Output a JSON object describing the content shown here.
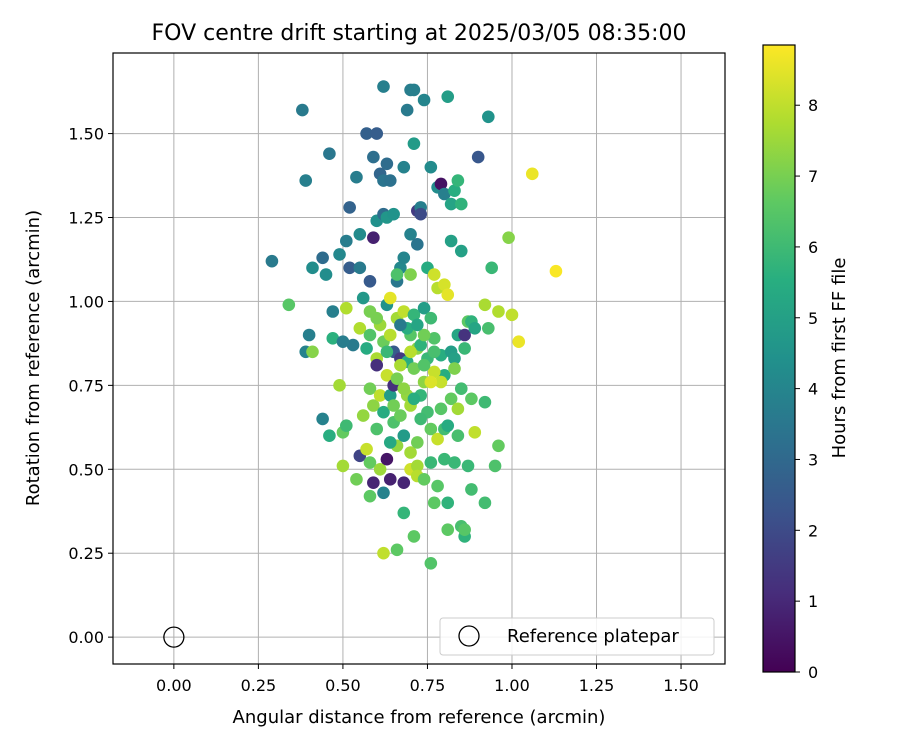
{
  "chart_data": {
    "type": "scatter",
    "title": "FOV centre drift starting at 2025/03/05 08:35:00",
    "xlabel": "Angular distance from reference (arcmin)",
    "ylabel": "Rotation from reference (arcmin)",
    "xlim": [
      -0.18,
      1.63
    ],
    "ylim": [
      -0.08,
      1.74
    ],
    "x_ticks": [
      "0.00",
      "0.25",
      "0.50",
      "0.75",
      "1.00",
      "1.25",
      "1.50"
    ],
    "y_ticks": [
      "0.00",
      "0.25",
      "0.50",
      "0.75",
      "1.00",
      "1.25",
      "1.50"
    ],
    "grid": true,
    "legend": {
      "position": "lower right",
      "entries": [
        "Reference platepar"
      ]
    },
    "colorbar": {
      "label": "Hours from first FF file",
      "range": [
        0,
        8.85
      ],
      "ticks": [
        "0",
        "1",
        "2",
        "3",
        "4",
        "5",
        "6",
        "7",
        "8"
      ],
      "colormap": "viridis"
    },
    "reference_point": {
      "x": 0.0,
      "y": 0.0
    },
    "series": [
      {
        "points": [
          [
            0.29,
            1.12,
            3.6
          ],
          [
            0.38,
            1.57,
            3.6
          ],
          [
            0.39,
            1.36,
            3.8
          ],
          [
            0.4,
            0.9,
            3.8
          ],
          [
            0.39,
            0.85,
            3.9
          ],
          [
            0.41,
            1.1,
            4.3
          ],
          [
            0.44,
            1.13,
            3.1
          ],
          [
            0.45,
            1.08,
            4.3
          ],
          [
            0.46,
            1.44,
            3.5
          ],
          [
            0.47,
            0.97,
            3.8
          ],
          [
            0.49,
            1.14,
            4.1
          ],
          [
            0.51,
            1.18,
            3.7
          ],
          [
            0.52,
            1.28,
            2.8
          ],
          [
            0.52,
            1.1,
            2.6
          ],
          [
            0.53,
            0.87,
            3.6
          ],
          [
            0.54,
            1.37,
            3.7
          ],
          [
            0.55,
            1.2,
            4.2
          ],
          [
            0.55,
            1.1,
            3.6
          ],
          [
            0.56,
            1.01,
            4.7
          ],
          [
            0.57,
            1.5,
            2.7
          ],
          [
            0.58,
            1.06,
            2.5
          ],
          [
            0.59,
            1.43,
            3.2
          ],
          [
            0.59,
            1.19,
            0.8
          ],
          [
            0.6,
            1.5,
            2.6
          ],
          [
            0.6,
            1.24,
            4.4
          ],
          [
            0.61,
            1.38,
            2.9
          ],
          [
            0.62,
            1.64,
            3.8
          ],
          [
            0.62,
            1.36,
            3.4
          ],
          [
            0.62,
            1.26,
            3.1
          ],
          [
            0.63,
            1.41,
            3.1
          ],
          [
            0.63,
            1.25,
            4.6
          ],
          [
            0.64,
            1.36,
            3.3
          ],
          [
            0.65,
            1.26,
            4.5
          ],
          [
            0.66,
            1.06,
            3.5
          ],
          [
            0.67,
            1.1,
            4.1
          ],
          [
            0.68,
            1.4,
            3.9
          ],
          [
            0.68,
            1.13,
            4.0
          ],
          [
            0.69,
            1.57,
            3.6
          ],
          [
            0.7,
            1.63,
            3.7
          ],
          [
            0.7,
            1.2,
            3.9
          ],
          [
            0.71,
            1.63,
            3.8
          ],
          [
            0.71,
            1.47,
            4.8
          ],
          [
            0.72,
            1.17,
            3.4
          ],
          [
            0.72,
            1.27,
            1.5
          ],
          [
            0.73,
            1.28,
            3.8
          ],
          [
            0.73,
            1.26,
            2.0
          ],
          [
            0.74,
            1.6,
            4.0
          ],
          [
            0.75,
            1.1,
            5.4
          ],
          [
            0.76,
            1.4,
            4.2
          ],
          [
            0.78,
            1.34,
            4.3
          ],
          [
            0.79,
            1.35,
            0.4
          ],
          [
            0.8,
            1.32,
            3.8
          ],
          [
            0.81,
            1.61,
            4.9
          ],
          [
            0.82,
            1.29,
            5.1
          ],
          [
            0.82,
            1.18,
            5.0
          ],
          [
            0.83,
            1.33,
            5.5
          ],
          [
            0.84,
            1.36,
            5.8
          ],
          [
            0.85,
            1.29,
            5.7
          ],
          [
            0.85,
            1.15,
            5.0
          ],
          [
            0.9,
            1.43,
            2.4
          ],
          [
            0.93,
            1.55,
            4.5
          ],
          [
            0.94,
            1.1,
            5.9
          ],
          [
            0.99,
            1.19,
            7.2
          ],
          [
            1.06,
            1.38,
            8.6
          ],
          [
            1.13,
            1.09,
            8.8
          ],
          [
            0.34,
            0.99,
            6.5
          ],
          [
            0.41,
            0.85,
            7.2
          ],
          [
            0.47,
            0.89,
            5.6
          ],
          [
            0.5,
            0.88,
            3.7
          ],
          [
            0.51,
            0.98,
            7.8
          ],
          [
            0.55,
            0.92,
            7.8
          ],
          [
            0.57,
            0.86,
            5.4
          ],
          [
            0.58,
            0.97,
            7.0
          ],
          [
            0.6,
            0.83,
            7.7
          ],
          [
            0.61,
            0.93,
            7.5
          ],
          [
            0.62,
            0.88,
            6.8
          ],
          [
            0.63,
            0.99,
            4.5
          ],
          [
            0.64,
            1.01,
            8.5
          ],
          [
            0.64,
            0.9,
            7.9
          ],
          [
            0.65,
            0.85,
            2.5
          ],
          [
            0.66,
            0.95,
            7.6
          ],
          [
            0.67,
            0.83,
            1.5
          ],
          [
            0.68,
            0.97,
            8.0
          ],
          [
            0.69,
            0.82,
            5.5
          ],
          [
            0.7,
            0.9,
            6.5
          ],
          [
            0.71,
            0.96,
            5.8
          ],
          [
            0.72,
            0.86,
            7.3
          ],
          [
            0.73,
            0.87,
            5.7
          ],
          [
            0.74,
            0.98,
            4.9
          ],
          [
            0.75,
            0.83,
            5.9
          ],
          [
            0.76,
            0.95,
            6.0
          ],
          [
            0.77,
            0.89,
            6.4
          ],
          [
            0.78,
            1.04,
            7.9
          ],
          [
            0.79,
            0.84,
            5.5
          ],
          [
            0.8,
            1.05,
            8.3
          ],
          [
            0.8,
            0.78,
            5.5
          ],
          [
            0.81,
            1.02,
            8.5
          ],
          [
            0.82,
            0.85,
            4.9
          ],
          [
            0.83,
            0.83,
            5.0
          ],
          [
            0.84,
            0.9,
            5.2
          ],
          [
            0.86,
            0.9,
            1.3
          ],
          [
            0.86,
            0.86,
            5.9
          ],
          [
            0.87,
            0.94,
            6.6
          ],
          [
            0.88,
            0.94,
            5.7
          ],
          [
            0.89,
            0.92,
            5.2
          ],
          [
            0.92,
            0.99,
            7.7
          ],
          [
            0.93,
            0.92,
            6.2
          ],
          [
            0.96,
            0.97,
            7.8
          ],
          [
            1.0,
            0.96,
            8.0
          ],
          [
            1.02,
            0.88,
            8.6
          ],
          [
            0.77,
            1.08,
            8.2
          ],
          [
            0.66,
            1.08,
            6.3
          ],
          [
            0.7,
            1.08,
            7.1
          ],
          [
            0.44,
            0.65,
            3.9
          ],
          [
            0.46,
            0.6,
            5.5
          ],
          [
            0.49,
            0.75,
            7.6
          ],
          [
            0.5,
            0.61,
            6.7
          ],
          [
            0.5,
            0.51,
            7.6
          ],
          [
            0.51,
            0.63,
            6.0
          ],
          [
            0.54,
            0.47,
            6.9
          ],
          [
            0.55,
            0.54,
            1.8
          ],
          [
            0.56,
            0.66,
            7.4
          ],
          [
            0.57,
            0.56,
            8.1
          ],
          [
            0.58,
            0.42,
            6.6
          ],
          [
            0.58,
            0.52,
            6.7
          ],
          [
            0.58,
            0.74,
            6.9
          ],
          [
            0.59,
            0.69,
            7.3
          ],
          [
            0.59,
            0.46,
            0.9
          ],
          [
            0.6,
            0.81,
            1.2
          ],
          [
            0.61,
            0.5,
            7.5
          ],
          [
            0.61,
            0.72,
            8.0
          ],
          [
            0.62,
            0.43,
            3.9
          ],
          [
            0.62,
            0.67,
            5.4
          ],
          [
            0.63,
            0.53,
            0.5
          ],
          [
            0.63,
            0.78,
            8.1
          ],
          [
            0.64,
            0.72,
            4.8
          ],
          [
            0.64,
            0.47,
            0.8
          ],
          [
            0.65,
            0.75,
            1.2
          ],
          [
            0.65,
            0.64,
            6.3
          ],
          [
            0.66,
            0.57,
            7.4
          ],
          [
            0.67,
            0.66,
            6.8
          ],
          [
            0.68,
            0.6,
            4.8
          ],
          [
            0.68,
            0.46,
            0.9
          ],
          [
            0.68,
            0.37,
            5.8
          ],
          [
            0.69,
            0.72,
            7.4
          ],
          [
            0.7,
            0.55,
            7.6
          ],
          [
            0.7,
            0.5,
            8.2
          ],
          [
            0.71,
            0.8,
            6.9
          ],
          [
            0.72,
            0.51,
            7.6
          ],
          [
            0.72,
            0.48,
            7.9
          ],
          [
            0.73,
            0.72,
            5.8
          ],
          [
            0.74,
            0.47,
            6.7
          ],
          [
            0.74,
            0.76,
            7.3
          ],
          [
            0.75,
            0.67,
            6.1
          ],
          [
            0.76,
            0.62,
            6.7
          ],
          [
            0.76,
            0.52,
            5.9
          ],
          [
            0.77,
            0.79,
            8.1
          ],
          [
            0.77,
            0.4,
            6.6
          ],
          [
            0.78,
            0.45,
            6.5
          ],
          [
            0.78,
            0.59,
            8.1
          ],
          [
            0.8,
            0.53,
            5.9
          ],
          [
            0.8,
            0.62,
            6.1
          ],
          [
            0.81,
            0.63,
            5.4
          ],
          [
            0.81,
            0.4,
            5.7
          ],
          [
            0.82,
            0.71,
            6.7
          ],
          [
            0.83,
            0.52,
            5.9
          ],
          [
            0.84,
            0.6,
            6.2
          ],
          [
            0.85,
            0.74,
            6.1
          ],
          [
            0.85,
            0.33,
            6.2
          ],
          [
            0.86,
            0.3,
            5.7
          ],
          [
            0.87,
            0.51,
            5.9
          ],
          [
            0.88,
            0.44,
            6.1
          ],
          [
            0.88,
            0.71,
            6.6
          ],
          [
            0.89,
            0.61,
            8.0
          ],
          [
            0.92,
            0.4,
            6.1
          ],
          [
            0.92,
            0.7,
            6.0
          ],
          [
            0.95,
            0.51,
            6.3
          ],
          [
            0.96,
            0.57,
            6.7
          ],
          [
            0.62,
            0.25,
            8.0
          ],
          [
            0.66,
            0.26,
            6.6
          ],
          [
            0.71,
            0.3,
            6.6
          ],
          [
            0.76,
            0.22,
            6.4
          ],
          [
            0.81,
            0.32,
            6.6
          ],
          [
            0.86,
            0.32,
            6.5
          ],
          [
            0.58,
            0.9,
            6.4
          ],
          [
            0.66,
            0.77,
            7.0
          ],
          [
            0.7,
            0.69,
            7.6
          ],
          [
            0.73,
            0.65,
            6.0
          ],
          [
            0.79,
            0.76,
            8.1
          ],
          [
            0.84,
            0.68,
            7.6
          ],
          [
            0.6,
            0.62,
            6.3
          ],
          [
            0.67,
            0.81,
            7.7
          ],
          [
            0.74,
            0.9,
            6.9
          ],
          [
            0.7,
            0.85,
            7.9
          ],
          [
            0.63,
            0.85,
            5.9
          ],
          [
            0.76,
            0.76,
            8.4
          ],
          [
            0.71,
            0.71,
            5.5
          ],
          [
            0.65,
            0.69,
            6.9
          ],
          [
            0.69,
            0.92,
            5.5
          ],
          [
            0.72,
            0.93,
            5.2
          ],
          [
            0.6,
            0.95,
            7.0
          ],
          [
            0.77,
            0.85,
            6.2
          ],
          [
            0.67,
            0.93,
            3.6
          ],
          [
            0.74,
            0.81,
            6.4
          ],
          [
            0.79,
            0.68,
            6.5
          ],
          [
            0.83,
            0.8,
            7.1
          ],
          [
            0.64,
            0.58,
            5.3
          ],
          [
            0.68,
            0.74,
            7.3
          ],
          [
            0.72,
            0.58,
            6.9
          ]
        ]
      }
    ]
  }
}
